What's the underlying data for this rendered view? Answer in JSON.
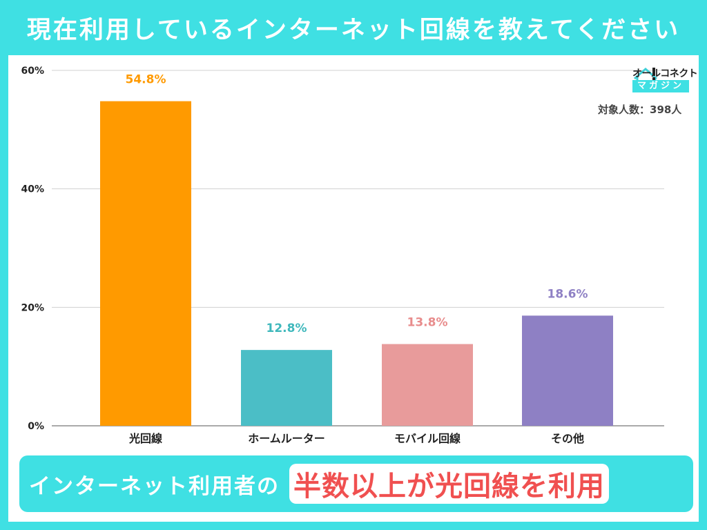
{
  "title": "現在利用しているインターネット回線を教えてください",
  "logo": {
    "name": "オールコネクト",
    "sub": "マガジン"
  },
  "respondents": "対象人数：398人",
  "banner": {
    "prefix": "インターネット利用者の",
    "highlight": "半数以上が光回線を利用"
  },
  "chart_data": {
    "type": "bar",
    "categories": [
      "光回線",
      "ホームルーター",
      "モバイル回線",
      "その他"
    ],
    "values": [
      54.8,
      12.8,
      13.8,
      18.6
    ],
    "value_labels": [
      "54.8%",
      "12.8%",
      "13.8%",
      "18.6%"
    ],
    "colors": [
      "#ff9a00",
      "#4bbec6",
      "#e89b9b",
      "#8e80c4"
    ],
    "label_colors": [
      "#ff9a00",
      "#3fb8bc",
      "#e88c8c",
      "#8e80c4"
    ],
    "yticks": [
      "0%",
      "20%",
      "40%",
      "60%"
    ],
    "ytick_values": [
      0,
      20,
      40,
      60
    ],
    "ylim": [
      0,
      60
    ],
    "grid": true,
    "xlabel": "",
    "ylabel": ""
  }
}
